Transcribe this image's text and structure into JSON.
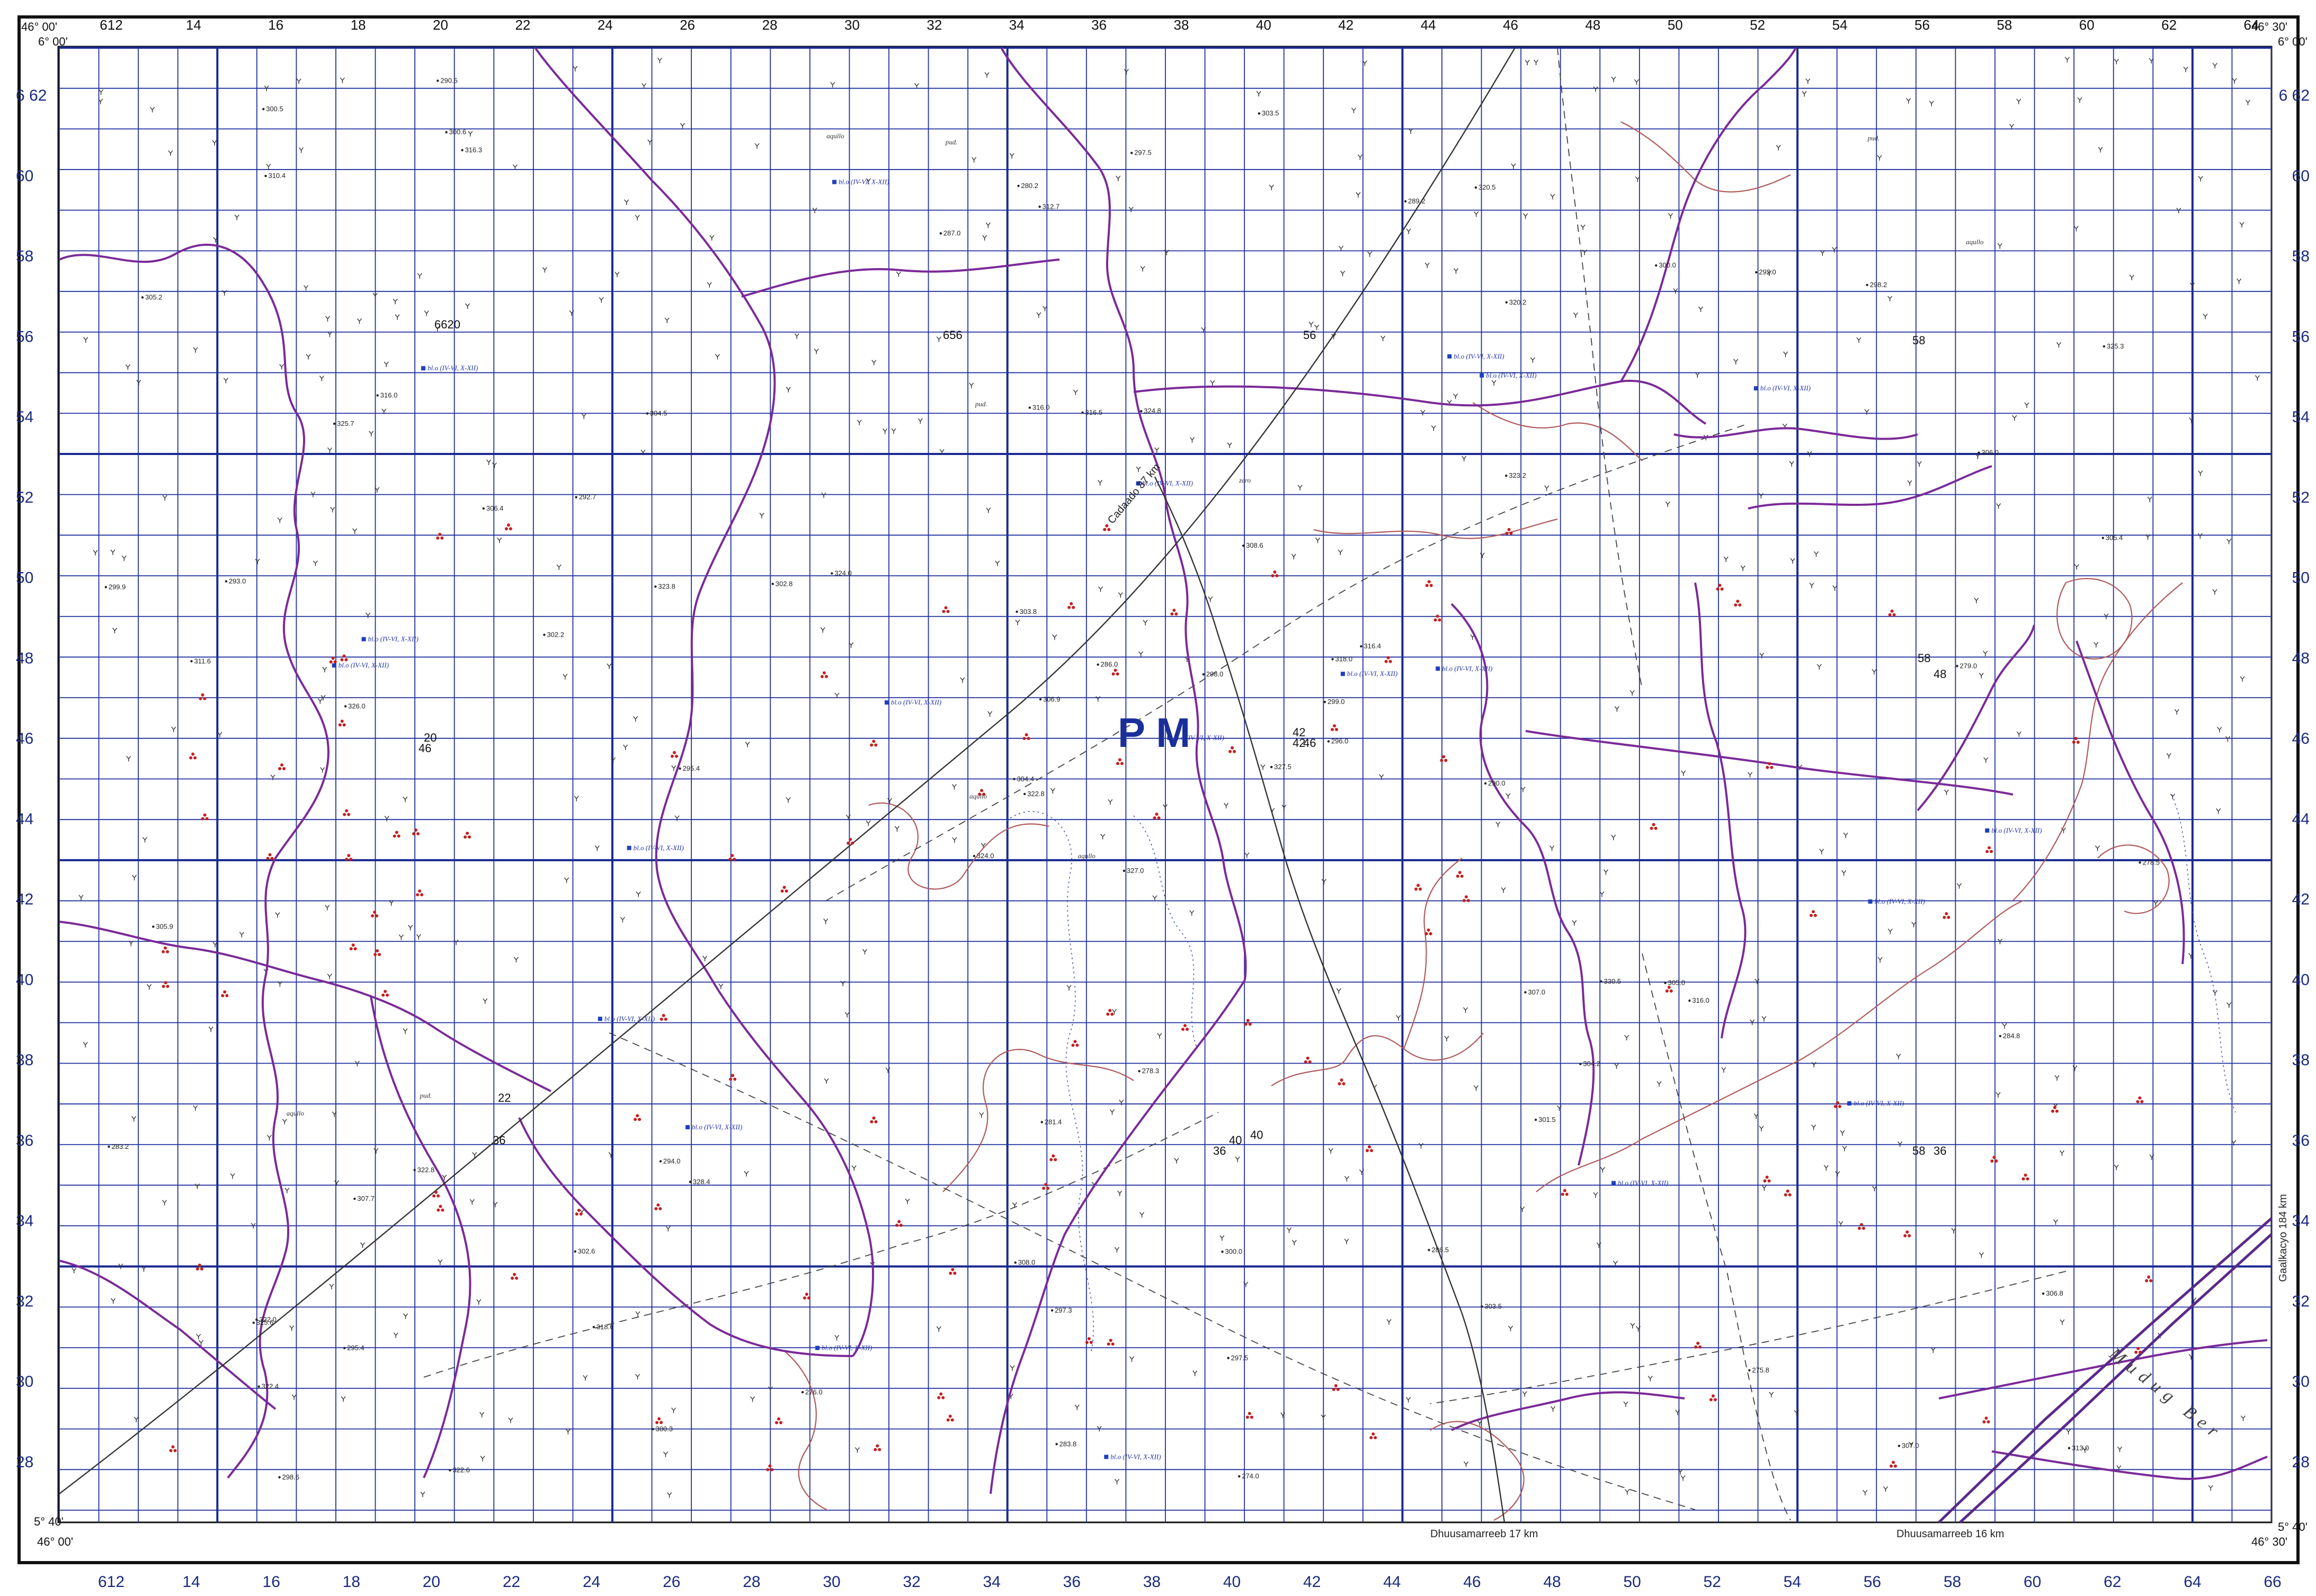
{
  "map": {
    "corners": {
      "top_left_lon": "46° 00'",
      "top_left_lat": "6° 00'",
      "top_right_lon": "46° 30'",
      "top_right_lat": "6° 00'",
      "bottom_left_lat": "5° 40'",
      "bottom_left_lon": "46° 00'",
      "bottom_right_lon": "46° 30'",
      "bottom_right_lat": "5° 40'"
    },
    "top_edge_labels": [
      "612",
      "14",
      "16",
      "18",
      "20",
      "22",
      "24",
      "26",
      "28",
      "30",
      "32",
      "34",
      "36",
      "38",
      "40",
      "42",
      "44",
      "46",
      "48",
      "50",
      "52",
      "54",
      "56",
      "58",
      "60",
      "62",
      "64"
    ],
    "bottom_edge_labels": [
      "612",
      "14",
      "16",
      "18",
      "20",
      "22",
      "24",
      "26",
      "28",
      "30",
      "32",
      "34",
      "36",
      "38",
      "40",
      "42",
      "44",
      "46",
      "48",
      "50",
      "52",
      "54",
      "56",
      "58",
      "60",
      "62",
      "64",
      "66"
    ],
    "left_edge_labels": [
      "6 62",
      "60",
      "58",
      "56",
      "54",
      "52",
      "50",
      "48",
      "46",
      "44",
      "42",
      "40",
      "38",
      "36",
      "34",
      "32",
      "30",
      "28"
    ],
    "right_edge_labels": [
      "6 62",
      "60",
      "58",
      "56",
      "54",
      "52",
      "50",
      "48",
      "46",
      "44",
      "42",
      "40",
      "38",
      "36",
      "34",
      "32",
      "30",
      "28"
    ],
    "zone_label": "P M",
    "inner_grid_labels": [
      "656",
      "6620",
      "20",
      "46",
      "56",
      "42",
      "42",
      "46",
      "58",
      "48",
      "58",
      "58",
      "36",
      "40",
      "36",
      "22",
      "36",
      "40"
    ],
    "roads": [
      {
        "label": "Cadaado 37 km"
      },
      {
        "label": "Dhuusamarreeb 17 km"
      },
      {
        "label": "Dhuusamarreeb 16 km"
      },
      {
        "label": "Gaalkacyo 184 km"
      }
    ],
    "river_name": "Mudug Ber",
    "spot_heights": [
      "327.0",
      "325.7",
      "322.8",
      "322.0",
      "318.0",
      "328.4",
      "320.5",
      "324.8",
      "320.2",
      "327.5",
      "316.3",
      "313.0",
      "326.0",
      "325.3",
      "324.0",
      "323.2",
      "322.6",
      "316.0",
      "308.6",
      "322.8",
      "324.0",
      "322.4",
      "318.6",
      "316.5",
      "316.4",
      "316.0",
      "316.0",
      "312.7",
      "311.6",
      "307.0",
      "305.4",
      "304.4",
      "308.0",
      "306.9",
      "304.5",
      "300.0",
      "294.0",
      "307.0",
      "306.8",
      "305.0",
      "303.5",
      "302.8",
      "302.2",
      "301.5",
      "300.3",
      "299.9",
      "299.0",
      "298.6",
      "297.3",
      "296.0",
      "307.7",
      "306.0",
      "305.2",
      "304.2",
      "303.5",
      "302.6",
      "300.6",
      "300.5",
      "300.0",
      "298.2",
      "297.5",
      "295.4",
      "293.0",
      "292.7",
      "292.0",
      "290.5",
      "289.2",
      "287.0",
      "286.0",
      "283.2",
      "281.4",
      "276.0",
      "330.5",
      "323.8",
      "325.6",
      "310.4",
      "306.4",
      "305.9",
      "303.8",
      "297.5",
      "298.0",
      "295.4",
      "290.0",
      "284.8",
      "283.8",
      "279.0",
      "278.3",
      "275.8",
      "274.0",
      "286.5",
      "280.2",
      "278.5"
    ],
    "well_labels": [
      "bl.o (IV-VI, X-XII)",
      "bl.o (IV-VI, X-XII)",
      "bl.o (IV-VI, X-XII)",
      "bl.o (IV-VI, X-XII)",
      "bl.o (IV-VI, X-XII)",
      "bl.o (IV-VI, X-XII)",
      "bl.o (IV-VI, X-XII)",
      "bl.o (IV-VI, X-XII)",
      "bl.o (IV-VI, X-XII)",
      "bl.o (IV-VI, X-XII)",
      "bl.o (IV-VI, X-XII)",
      "bl.o (IV-VI, X-XII)",
      "bl.o (IV-VI, X-XII)",
      "bl.o (IV-VI, X-XII)",
      "bl.o (IV-VI, X-XII)",
      "bl.o (IV-VI, X-XII)",
      "bl.o (IV-VI, X-XII)",
      "bl.o (IV-VI, X-XII)",
      "bl.o (IV-VI, X-XII)",
      "bl.o (IV-VI, X-XII)",
      "bl.o (IV-VI, X-XII)"
    ],
    "place_labels": [
      "aqullo",
      "aqullo",
      "aqullo",
      "aqullo",
      "aqullo",
      "pud.",
      "pud.",
      "pud.",
      "pud.",
      "zero"
    ],
    "colors": {
      "grid": "#1f2f9c",
      "grid_major": "#1a2a90",
      "river": "#7a2a98",
      "contour": "#b05a5a",
      "road": "#333333",
      "marker_red": "#c81e1e",
      "well_blue": "#1f3fbf"
    }
  }
}
